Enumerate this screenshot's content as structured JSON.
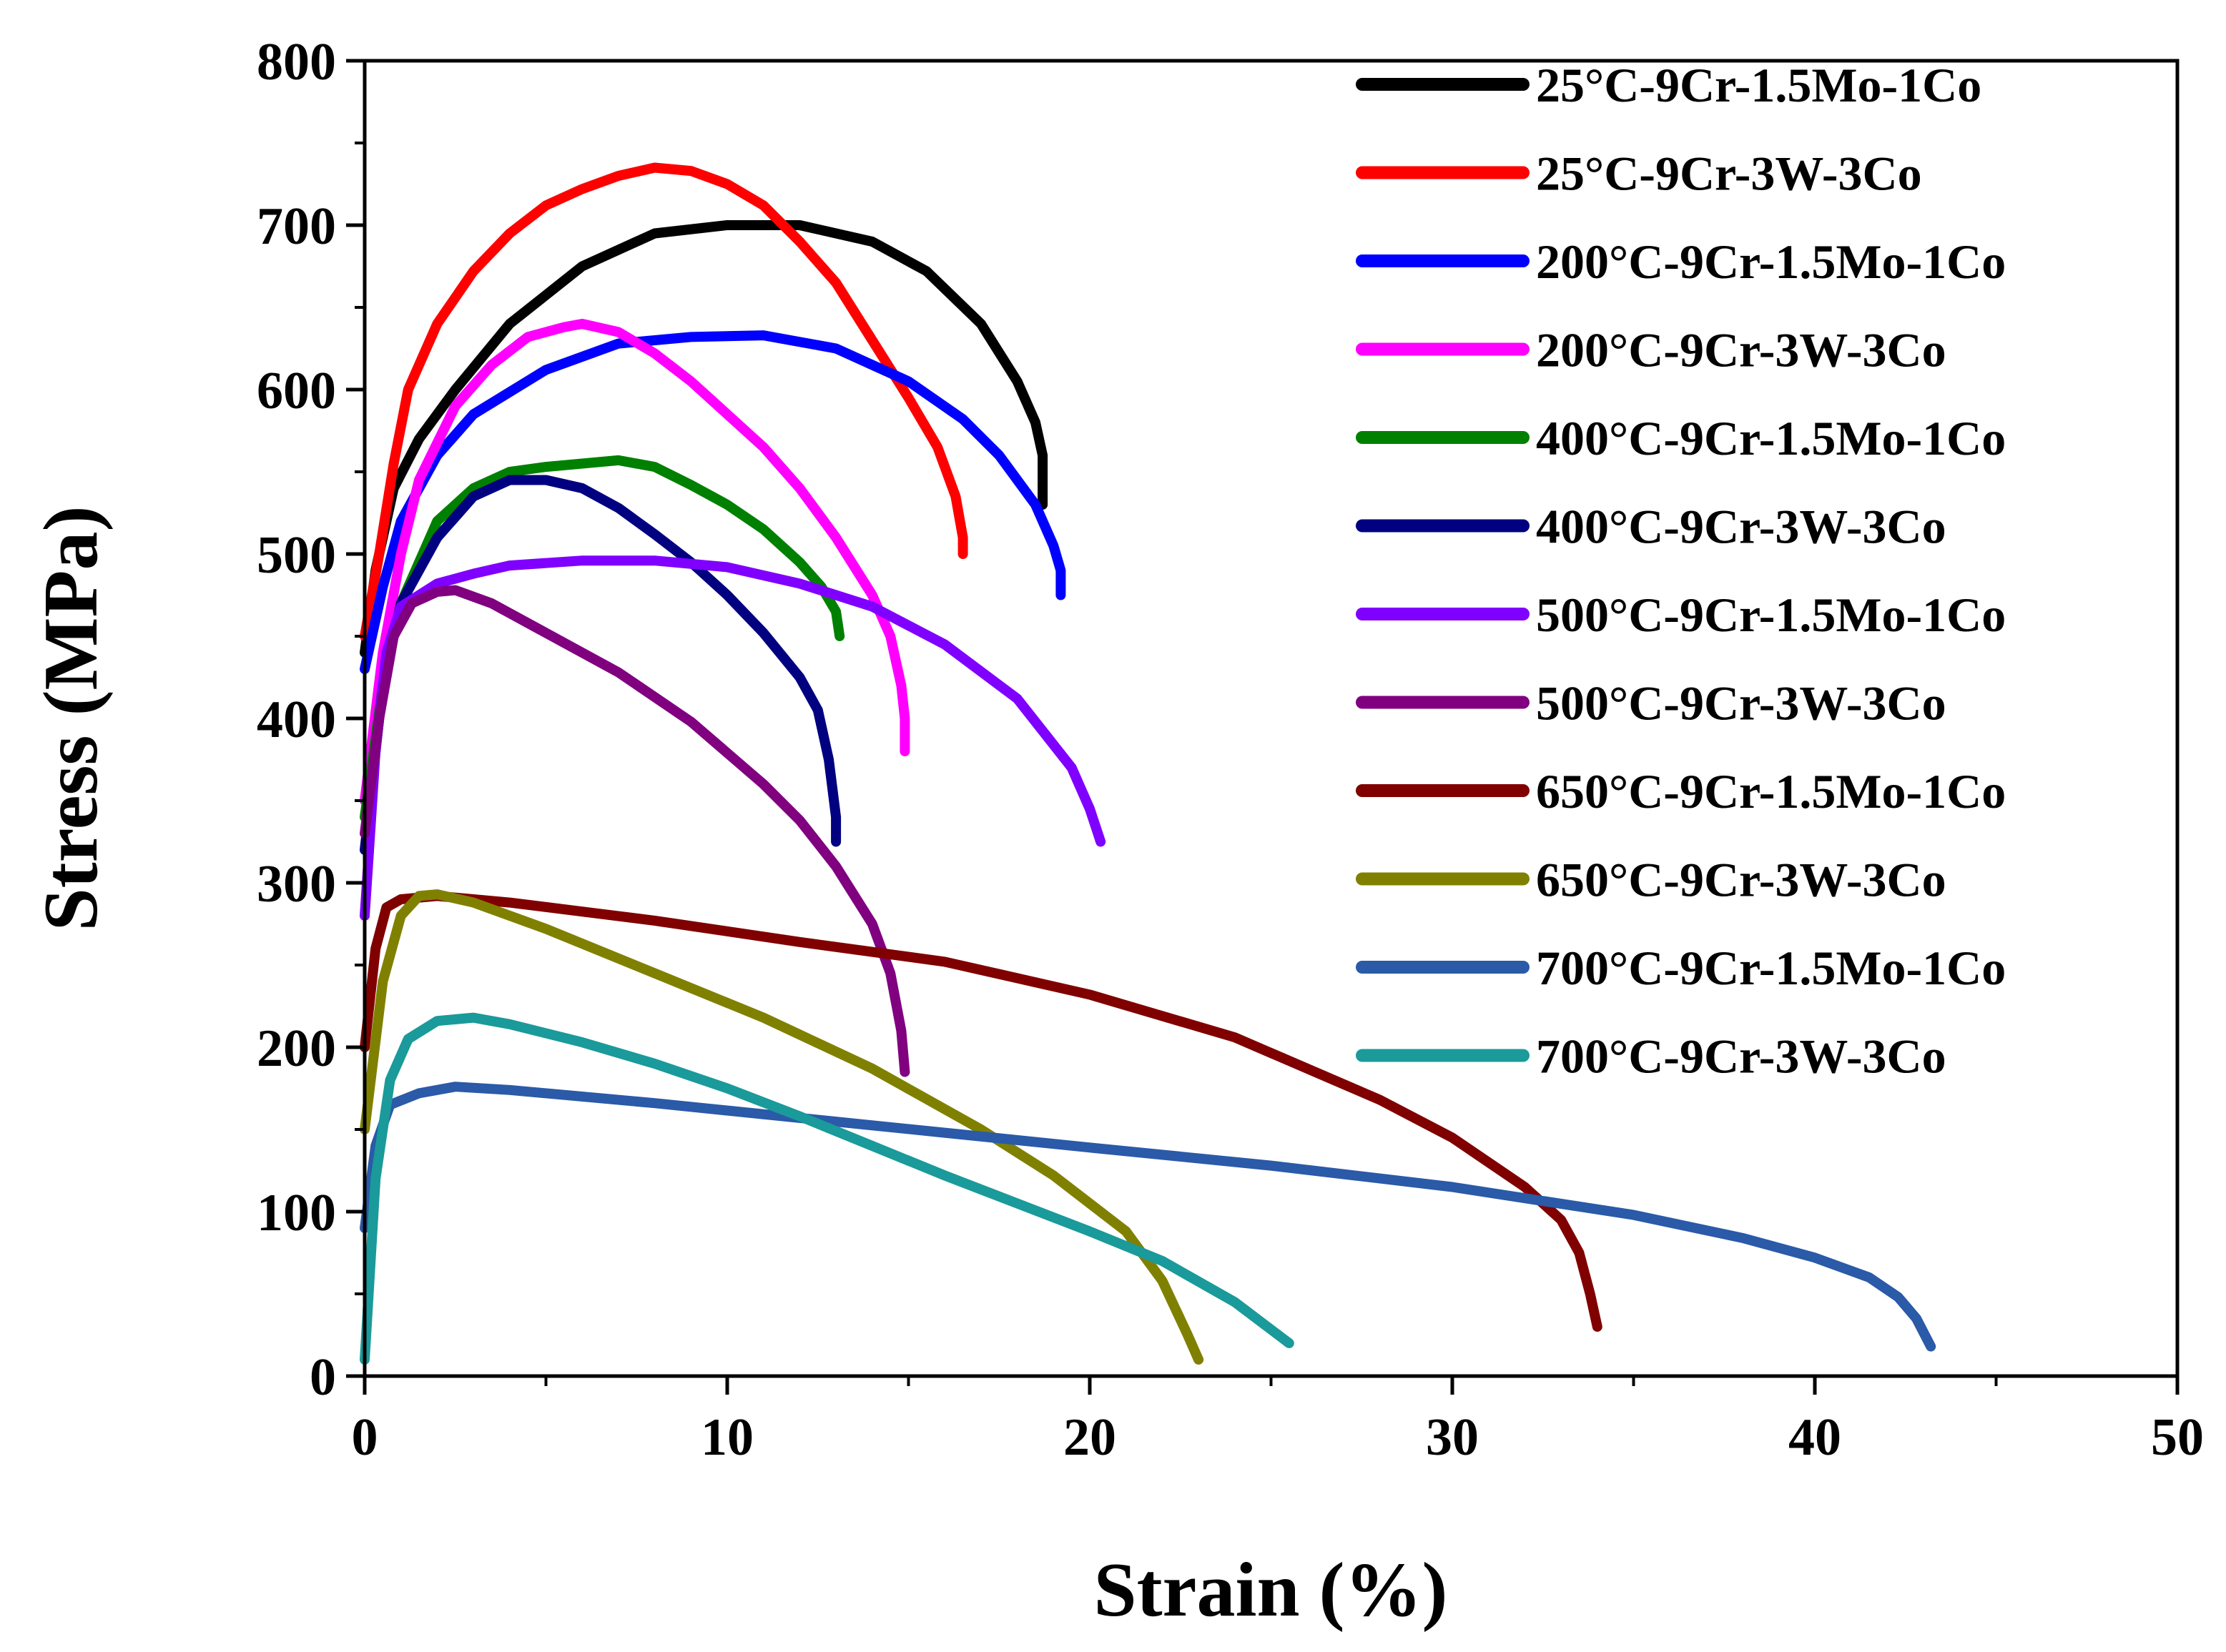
{
  "chart_data": {
    "type": "line",
    "title": "",
    "xlabel": "Strain (%)",
    "ylabel": "Stress (MPa)",
    "xlim": [
      0,
      50
    ],
    "ylim": [
      0,
      800
    ],
    "xticks": [
      0,
      10,
      20,
      30,
      40,
      50
    ],
    "yticks": [
      0,
      100,
      200,
      300,
      400,
      500,
      600,
      700,
      800
    ],
    "grid": false,
    "legend_position": "top-right",
    "series": [
      {
        "name": "25°C-9Cr-1.5Mo-1Co",
        "color": "#000000",
        "points": [
          [
            0,
            440
          ],
          [
            0.3,
            490
          ],
          [
            0.8,
            540
          ],
          [
            1.5,
            570
          ],
          [
            2.5,
            600
          ],
          [
            4,
            640
          ],
          [
            6,
            675
          ],
          [
            8,
            695
          ],
          [
            10,
            700
          ],
          [
            12,
            700
          ],
          [
            14,
            690
          ],
          [
            15.5,
            672
          ],
          [
            17,
            640
          ],
          [
            18,
            605
          ],
          [
            18.5,
            580
          ],
          [
            18.7,
            560
          ],
          [
            18.7,
            530
          ]
        ]
      },
      {
        "name": "25°C-9Cr-3W-3Co",
        "color": "#ff0000",
        "points": [
          [
            0,
            450
          ],
          [
            0.4,
            500
          ],
          [
            0.8,
            555
          ],
          [
            1.2,
            600
          ],
          [
            2,
            640
          ],
          [
            3,
            672
          ],
          [
            4,
            695
          ],
          [
            5,
            712
          ],
          [
            6,
            722
          ],
          [
            7,
            730
          ],
          [
            8,
            735
          ],
          [
            9,
            733
          ],
          [
            10,
            725
          ],
          [
            11,
            712
          ],
          [
            12,
            690
          ],
          [
            13,
            665
          ],
          [
            14,
            630
          ],
          [
            15,
            595
          ],
          [
            15.8,
            565
          ],
          [
            16.3,
            535
          ],
          [
            16.5,
            510
          ],
          [
            16.5,
            500
          ]
        ]
      },
      {
        "name": "200°C-9Cr-1.5Mo-1Co",
        "color": "#0000ff",
        "points": [
          [
            0,
            430
          ],
          [
            0.5,
            480
          ],
          [
            1,
            520
          ],
          [
            2,
            560
          ],
          [
            3,
            585
          ],
          [
            5,
            612
          ],
          [
            7,
            628
          ],
          [
            9,
            632
          ],
          [
            11,
            633
          ],
          [
            13,
            625
          ],
          [
            15,
            605
          ],
          [
            16.5,
            582
          ],
          [
            17.5,
            560
          ],
          [
            18.5,
            530
          ],
          [
            19,
            505
          ],
          [
            19.2,
            490
          ],
          [
            19.2,
            475
          ]
        ]
      },
      {
        "name": "200°C-9Cr-3W-3Co",
        "color": "#ff00ff",
        "points": [
          [
            0,
            350
          ],
          [
            0.5,
            440
          ],
          [
            1,
            500
          ],
          [
            1.5,
            545
          ],
          [
            2.5,
            590
          ],
          [
            3.5,
            615
          ],
          [
            4.5,
            632
          ],
          [
            5.5,
            638
          ],
          [
            6,
            640
          ],
          [
            7,
            635
          ],
          [
            8,
            622
          ],
          [
            9,
            605
          ],
          [
            10,
            585
          ],
          [
            11,
            565
          ],
          [
            12,
            540
          ],
          [
            13,
            510
          ],
          [
            14,
            475
          ],
          [
            14.5,
            450
          ],
          [
            14.8,
            420
          ],
          [
            14.9,
            400
          ],
          [
            14.9,
            380
          ]
        ]
      },
      {
        "name": "400°C-9Cr-1.5Mo-1Co",
        "color": "#008000",
        "points": [
          [
            0,
            340
          ],
          [
            0.5,
            420
          ],
          [
            1,
            470
          ],
          [
            2,
            520
          ],
          [
            3,
            540
          ],
          [
            4,
            550
          ],
          [
            5,
            553
          ],
          [
            6,
            555
          ],
          [
            7,
            557
          ],
          [
            8,
            553
          ],
          [
            9,
            542
          ],
          [
            10,
            530
          ],
          [
            11,
            515
          ],
          [
            12,
            495
          ],
          [
            12.6,
            480
          ],
          [
            13,
            465
          ],
          [
            13.1,
            450
          ]
        ]
      },
      {
        "name": "400°C-9Cr-3W-3Co",
        "color": "#000080",
        "points": [
          [
            0,
            320
          ],
          [
            0.5,
            420
          ],
          [
            1,
            470
          ],
          [
            2,
            510
          ],
          [
            3,
            535
          ],
          [
            4,
            545
          ],
          [
            5,
            545
          ],
          [
            6,
            540
          ],
          [
            7,
            528
          ],
          [
            8,
            512
          ],
          [
            9,
            495
          ],
          [
            10,
            475
          ],
          [
            11,
            452
          ],
          [
            12,
            425
          ],
          [
            12.5,
            405
          ],
          [
            12.8,
            375
          ],
          [
            13,
            340
          ],
          [
            13,
            325
          ]
        ]
      },
      {
        "name": "500°C-9Cr-1.5Mo-1Co",
        "color": "#8000ff",
        "points": [
          [
            0,
            280
          ],
          [
            0.3,
            380
          ],
          [
            0.6,
            440
          ],
          [
            1,
            468
          ],
          [
            2,
            482
          ],
          [
            3,
            488
          ],
          [
            4,
            493
          ],
          [
            6,
            496
          ],
          [
            8,
            496
          ],
          [
            10,
            492
          ],
          [
            12,
            482
          ],
          [
            14,
            468
          ],
          [
            16,
            445
          ],
          [
            18,
            412
          ],
          [
            19.5,
            370
          ],
          [
            20,
            345
          ],
          [
            20.3,
            325
          ]
        ]
      },
      {
        "name": "500°C-9Cr-3W-3Co",
        "color": "#800080",
        "points": [
          [
            0,
            330
          ],
          [
            0.4,
            400
          ],
          [
            0.8,
            450
          ],
          [
            1.3,
            470
          ],
          [
            2,
            477
          ],
          [
            2.5,
            478
          ],
          [
            3.5,
            470
          ],
          [
            5,
            452
          ],
          [
            7,
            428
          ],
          [
            9,
            398
          ],
          [
            11,
            360
          ],
          [
            12,
            338
          ],
          [
            13,
            310
          ],
          [
            14,
            275
          ],
          [
            14.5,
            245
          ],
          [
            14.8,
            210
          ],
          [
            14.9,
            185
          ]
        ]
      },
      {
        "name": "650°C-9Cr-1.5Mo-1Co",
        "color": "#800000",
        "points": [
          [
            0,
            200
          ],
          [
            0.3,
            260
          ],
          [
            0.6,
            285
          ],
          [
            1,
            290
          ],
          [
            2,
            292
          ],
          [
            4,
            288
          ],
          [
            8,
            277
          ],
          [
            12,
            264
          ],
          [
            16,
            252
          ],
          [
            20,
            232
          ],
          [
            24,
            206
          ],
          [
            28,
            168
          ],
          [
            30,
            145
          ],
          [
            32,
            115
          ],
          [
            33,
            95
          ],
          [
            33.5,
            75
          ],
          [
            33.8,
            50
          ],
          [
            34,
            30
          ]
        ]
      },
      {
        "name": "650°C-9Cr-3W-3Co",
        "color": "#808000",
        "points": [
          [
            0,
            150
          ],
          [
            0.5,
            240
          ],
          [
            1,
            280
          ],
          [
            1.5,
            292
          ],
          [
            2,
            293
          ],
          [
            3,
            288
          ],
          [
            5,
            272
          ],
          [
            8,
            245
          ],
          [
            11,
            218
          ],
          [
            14,
            187
          ],
          [
            17,
            150
          ],
          [
            19,
            122
          ],
          [
            21,
            88
          ],
          [
            22,
            58
          ],
          [
            22.7,
            25
          ],
          [
            23,
            10
          ]
        ]
      },
      {
        "name": "700°C-9Cr-1.5Mo-1Co",
        "color": "#2a5aa8",
        "points": [
          [
            0,
            90
          ],
          [
            0.3,
            140
          ],
          [
            0.7,
            165
          ],
          [
            1.5,
            172
          ],
          [
            2.5,
            176
          ],
          [
            4,
            174
          ],
          [
            8,
            166
          ],
          [
            12,
            157
          ],
          [
            16,
            148
          ],
          [
            20,
            139
          ],
          [
            25,
            128
          ],
          [
            30,
            115
          ],
          [
            35,
            98
          ],
          [
            38,
            84
          ],
          [
            40,
            72
          ],
          [
            41.5,
            60
          ],
          [
            42.3,
            48
          ],
          [
            42.8,
            35
          ],
          [
            43.2,
            18
          ]
        ]
      },
      {
        "name": "700°C-9Cr-3W-3Co",
        "color": "#1a9a9a",
        "points": [
          [
            0,
            10
          ],
          [
            0.3,
            120
          ],
          [
            0.7,
            180
          ],
          [
            1.2,
            205
          ],
          [
            2,
            216
          ],
          [
            3,
            218
          ],
          [
            4,
            214
          ],
          [
            6,
            203
          ],
          [
            8,
            190
          ],
          [
            10,
            175
          ],
          [
            12,
            158
          ],
          [
            14,
            140
          ],
          [
            16,
            122
          ],
          [
            18,
            105
          ],
          [
            20,
            88
          ],
          [
            22,
            70
          ],
          [
            24,
            45
          ],
          [
            25.5,
            20
          ]
        ]
      }
    ]
  }
}
